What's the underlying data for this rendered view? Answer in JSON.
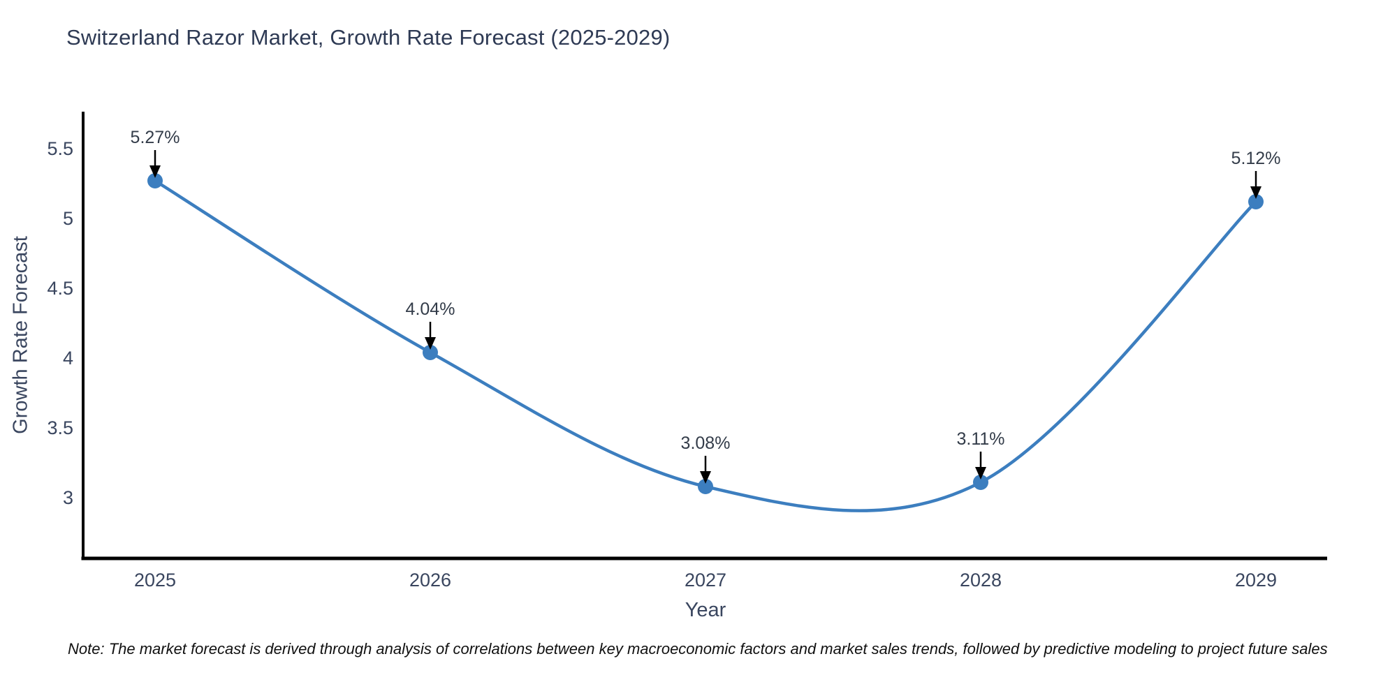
{
  "chart_data": {
    "type": "line",
    "title": "Switzerland Razor Market, Growth Rate Forecast (2025-2029)",
    "xlabel": "Year",
    "ylabel": "Growth Rate Forecast",
    "x_categories": [
      "2025",
      "2026",
      "2027",
      "2028",
      "2029"
    ],
    "series": [
      {
        "name": "Growth Rate Forecast",
        "values": [
          5.27,
          4.04,
          3.08,
          3.11,
          5.12
        ],
        "point_labels": [
          "5.27%",
          "4.04%",
          "3.08%",
          "3.11%",
          "5.12%"
        ]
      }
    ],
    "ytick_values": [
      3,
      3.5,
      4,
      4.5,
      5,
      5.5
    ],
    "ytick_labels": [
      "3",
      "3.5",
      "4",
      "4.5",
      "5",
      "5.5"
    ],
    "ylim": [
      2.565,
      5.765
    ],
    "line_shape": "spline",
    "grid": false,
    "legend": null,
    "colors": {
      "line": "#3c7ebf",
      "marker": "#3c7ebf",
      "axis": "#000000",
      "arrow": "#000000",
      "title_text": "#2e3a54",
      "tick_text": "#3a465f",
      "annotation_text": "#333c49"
    },
    "note": "Note: The market forecast is derived through analysis of correlations between key macroeconomic factors and market sales trends, followed by predictive modeling to project future sales"
  }
}
